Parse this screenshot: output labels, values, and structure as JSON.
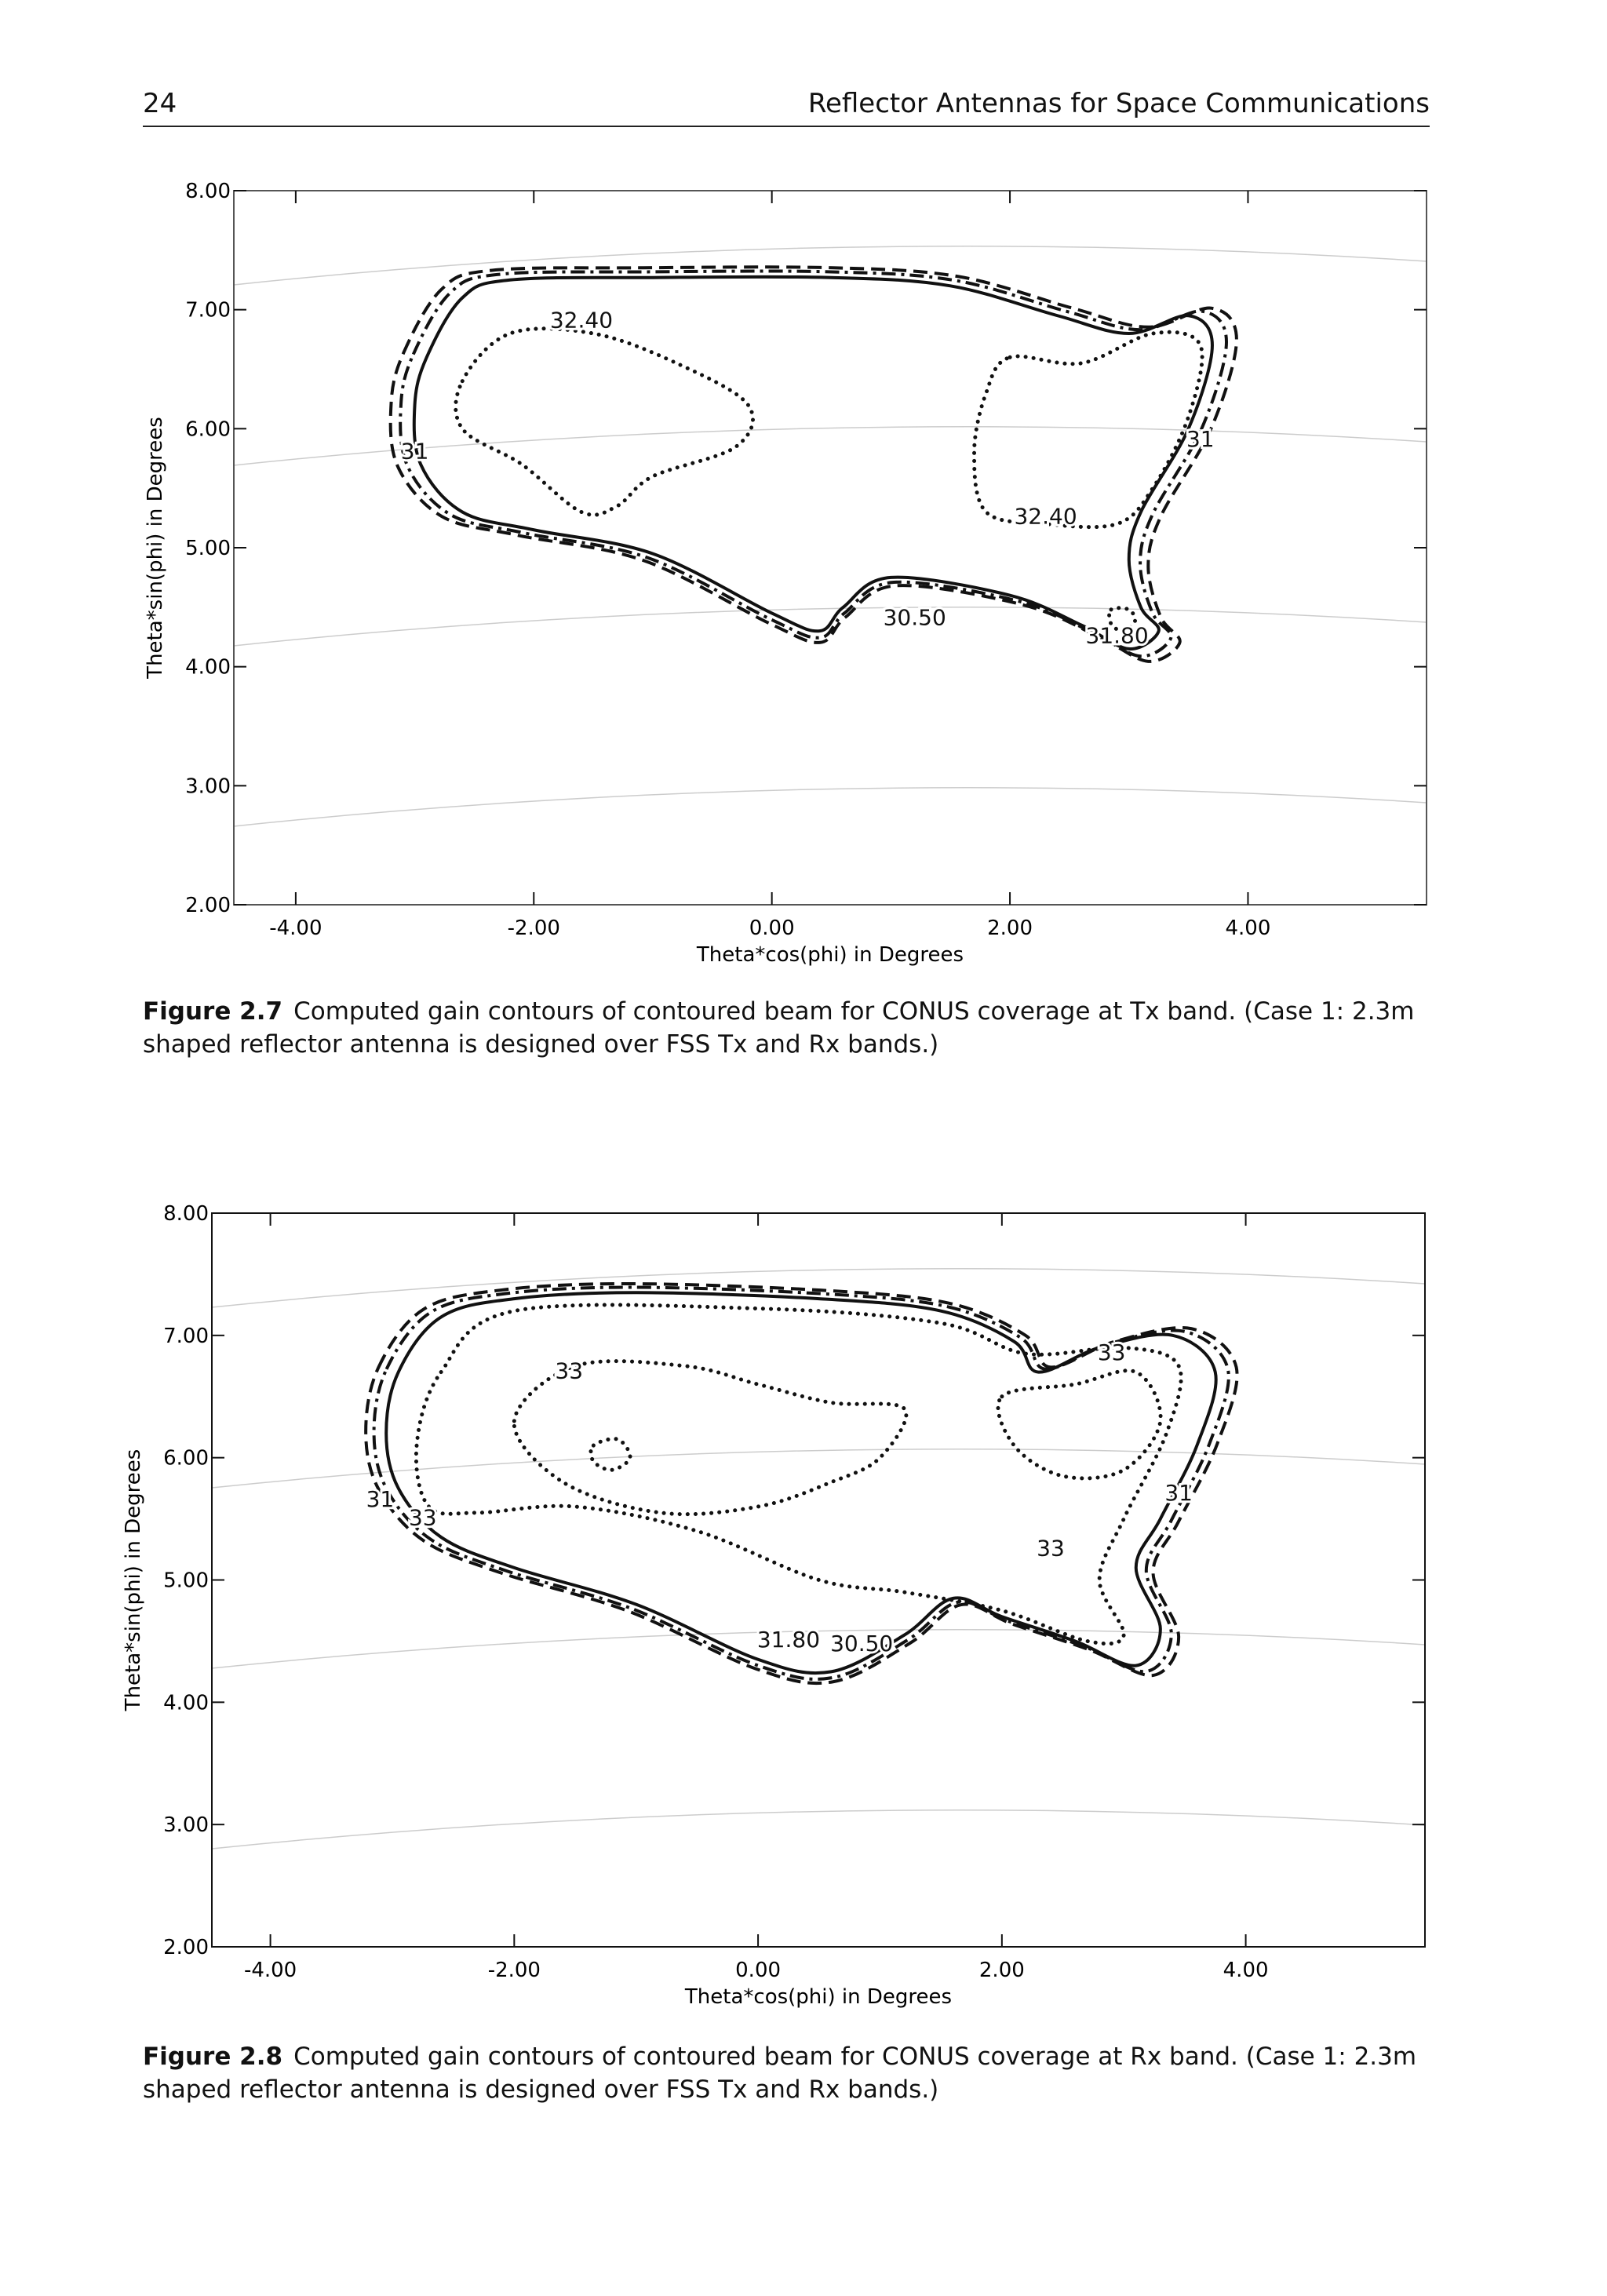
{
  "header": {
    "page_number": "24",
    "running_title": "Reflector Antennas for Space Communications"
  },
  "chart_data": [
    {
      "type": "contour",
      "xlabel": "Theta*cos(phi) in Degrees",
      "ylabel": "Theta*sin(phi) in Degrees",
      "xlim": [
        -4.52,
        5.5
      ],
      "ylim": [
        2,
        8
      ],
      "xticks": [
        {
          "value": -4,
          "label": "-4.00"
        },
        {
          "value": -2,
          "label": "-2.00"
        },
        {
          "value": 0,
          "label": "0.00"
        },
        {
          "value": 2,
          "label": "2.00"
        },
        {
          "value": 4,
          "label": "4.00"
        }
      ],
      "yticks": [
        {
          "value": 2,
          "label": "2.00"
        },
        {
          "value": 3,
          "label": "3.00"
        },
        {
          "value": 4,
          "label": "4.00"
        },
        {
          "value": 5,
          "label": "5.00"
        },
        {
          "value": 6,
          "label": "6.00"
        },
        {
          "value": 7,
          "label": "7.00"
        },
        {
          "value": 8,
          "label": "8.00"
        }
      ],
      "contour_labels": [
        "32.40",
        "31",
        "31",
        "32.40",
        "30.50",
        "31.80"
      ]
    },
    {
      "type": "contour",
      "xlabel": "Theta*cos(phi) in Degrees",
      "ylabel": "Theta*sin(phi) in Degrees",
      "xlim": [
        -4.48,
        5.47
      ],
      "ylim": [
        2,
        8
      ],
      "xticks": [
        {
          "value": -4,
          "label": "-4.00"
        },
        {
          "value": -2,
          "label": "-2.00"
        },
        {
          "value": 0,
          "label": "0.00"
        },
        {
          "value": 2,
          "label": "2.00"
        },
        {
          "value": 4,
          "label": "4.00"
        }
      ],
      "yticks": [
        {
          "value": 2,
          "label": "2.00"
        },
        {
          "value": 3,
          "label": "3.00"
        },
        {
          "value": 4,
          "label": "4.00"
        },
        {
          "value": 5,
          "label": "5.00"
        },
        {
          "value": 6,
          "label": "6.00"
        },
        {
          "value": 7,
          "label": "7.00"
        },
        {
          "value": 8,
          "label": "8.00"
        }
      ],
      "contour_labels": [
        "33",
        "31",
        "33",
        "33",
        "31",
        "33",
        "31.80",
        "30.50"
      ]
    }
  ],
  "captions": [
    {
      "label": "Figure 2.7",
      "text": "Computed gain contours of contoured beam for CONUS coverage at Tx band. (Case 1: 2.3m shaped reflector antenna is designed over FSS Tx and Rx bands.)"
    },
    {
      "label": "Figure 2.8",
      "text": "Computed gain contours of contoured beam for CONUS coverage at Rx band. (Case 1: 2.3m shaped reflector antenna is designed over FSS Tx and Rx bands.)"
    }
  ]
}
